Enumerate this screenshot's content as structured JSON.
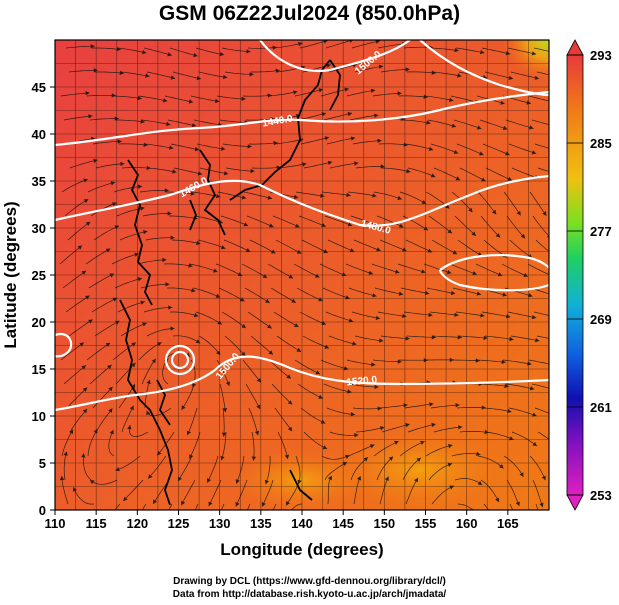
{
  "title": "GSM 06Z22Jul2024 (850.0hPa)",
  "x_axis": {
    "label": "Longitude (degrees)",
    "ticks": [
      "110",
      "115",
      "120",
      "125",
      "130",
      "135",
      "140",
      "145",
      "150",
      "155",
      "160",
      "165"
    ]
  },
  "y_axis": {
    "label": "Latitude  (degrees)",
    "ticks": [
      "0",
      "5",
      "10",
      "15",
      "20",
      "25",
      "30",
      "35",
      "40",
      "45"
    ]
  },
  "colorbar": {
    "labels": [
      "293",
      "285",
      "277",
      "269",
      "261",
      "253"
    ],
    "colors": [
      "#e83a3a",
      "#f07818",
      "#f0c010",
      "#7ce020",
      "#20d060",
      "#10b0d8",
      "#1060e0",
      "#1010b0",
      "#8010c0",
      "#e020c0"
    ]
  },
  "contours": [
    {
      "label": "1440.0"
    },
    {
      "label": "1460.0"
    },
    {
      "label": "1480.0"
    },
    {
      "label": "1500.0"
    },
    {
      "label": "1500.0"
    },
    {
      "label": "1520.0"
    }
  ],
  "credits": {
    "line1": "Drawing by DCL (https://www.gfd-dennou.org/library/dcl/)",
    "line2": "Data from http://database.rish.kyoto-u.ac.jp/arch/jmadata/"
  }
}
